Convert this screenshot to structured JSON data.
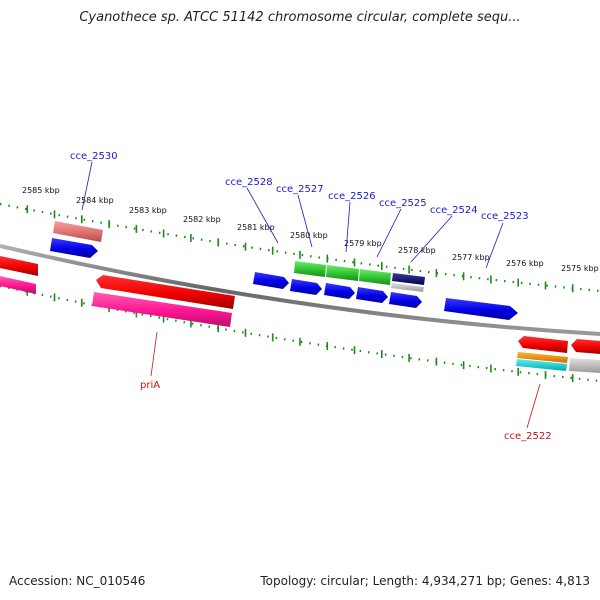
{
  "title": "Cyanothece sp. ATCC 51142 chromosome circular, complete sequ...",
  "footer": {
    "accession": "Accession: NC_010546",
    "topology": "Topology: circular; Length: 4,934,271 bp; Genes: 4,813"
  },
  "colors": {
    "backbone": "#777777",
    "tick": "#1a8a1a",
    "label_blue": "#1a1acc",
    "label_red": "#cc1111"
  },
  "scale_labels": [
    "2585 kbp",
    "2584 kbp",
    "2583 kbp",
    "2582 kbp",
    "2581 kbp",
    "2580 kbp",
    "2579 kbp",
    "2578 kbp",
    "2577 kbp",
    "2576 kbp",
    "2575 kbp"
  ],
  "gene_labels": [
    {
      "text": "cce_2530",
      "color": "blue"
    },
    {
      "text": "cce_2528",
      "color": "blue"
    },
    {
      "text": "cce_2527",
      "color": "blue"
    },
    {
      "text": "cce_2526",
      "color": "blue"
    },
    {
      "text": "cce_2525",
      "color": "blue"
    },
    {
      "text": "cce_2524",
      "color": "blue"
    },
    {
      "text": "cce_2523",
      "color": "blue"
    },
    {
      "text": "priA",
      "color": "red"
    },
    {
      "text": "cce_2522",
      "color": "red"
    }
  ],
  "feature_colors": [
    "blue",
    "red",
    "pink",
    "magenta",
    "green",
    "navy",
    "gray",
    "orange",
    "cyan"
  ]
}
